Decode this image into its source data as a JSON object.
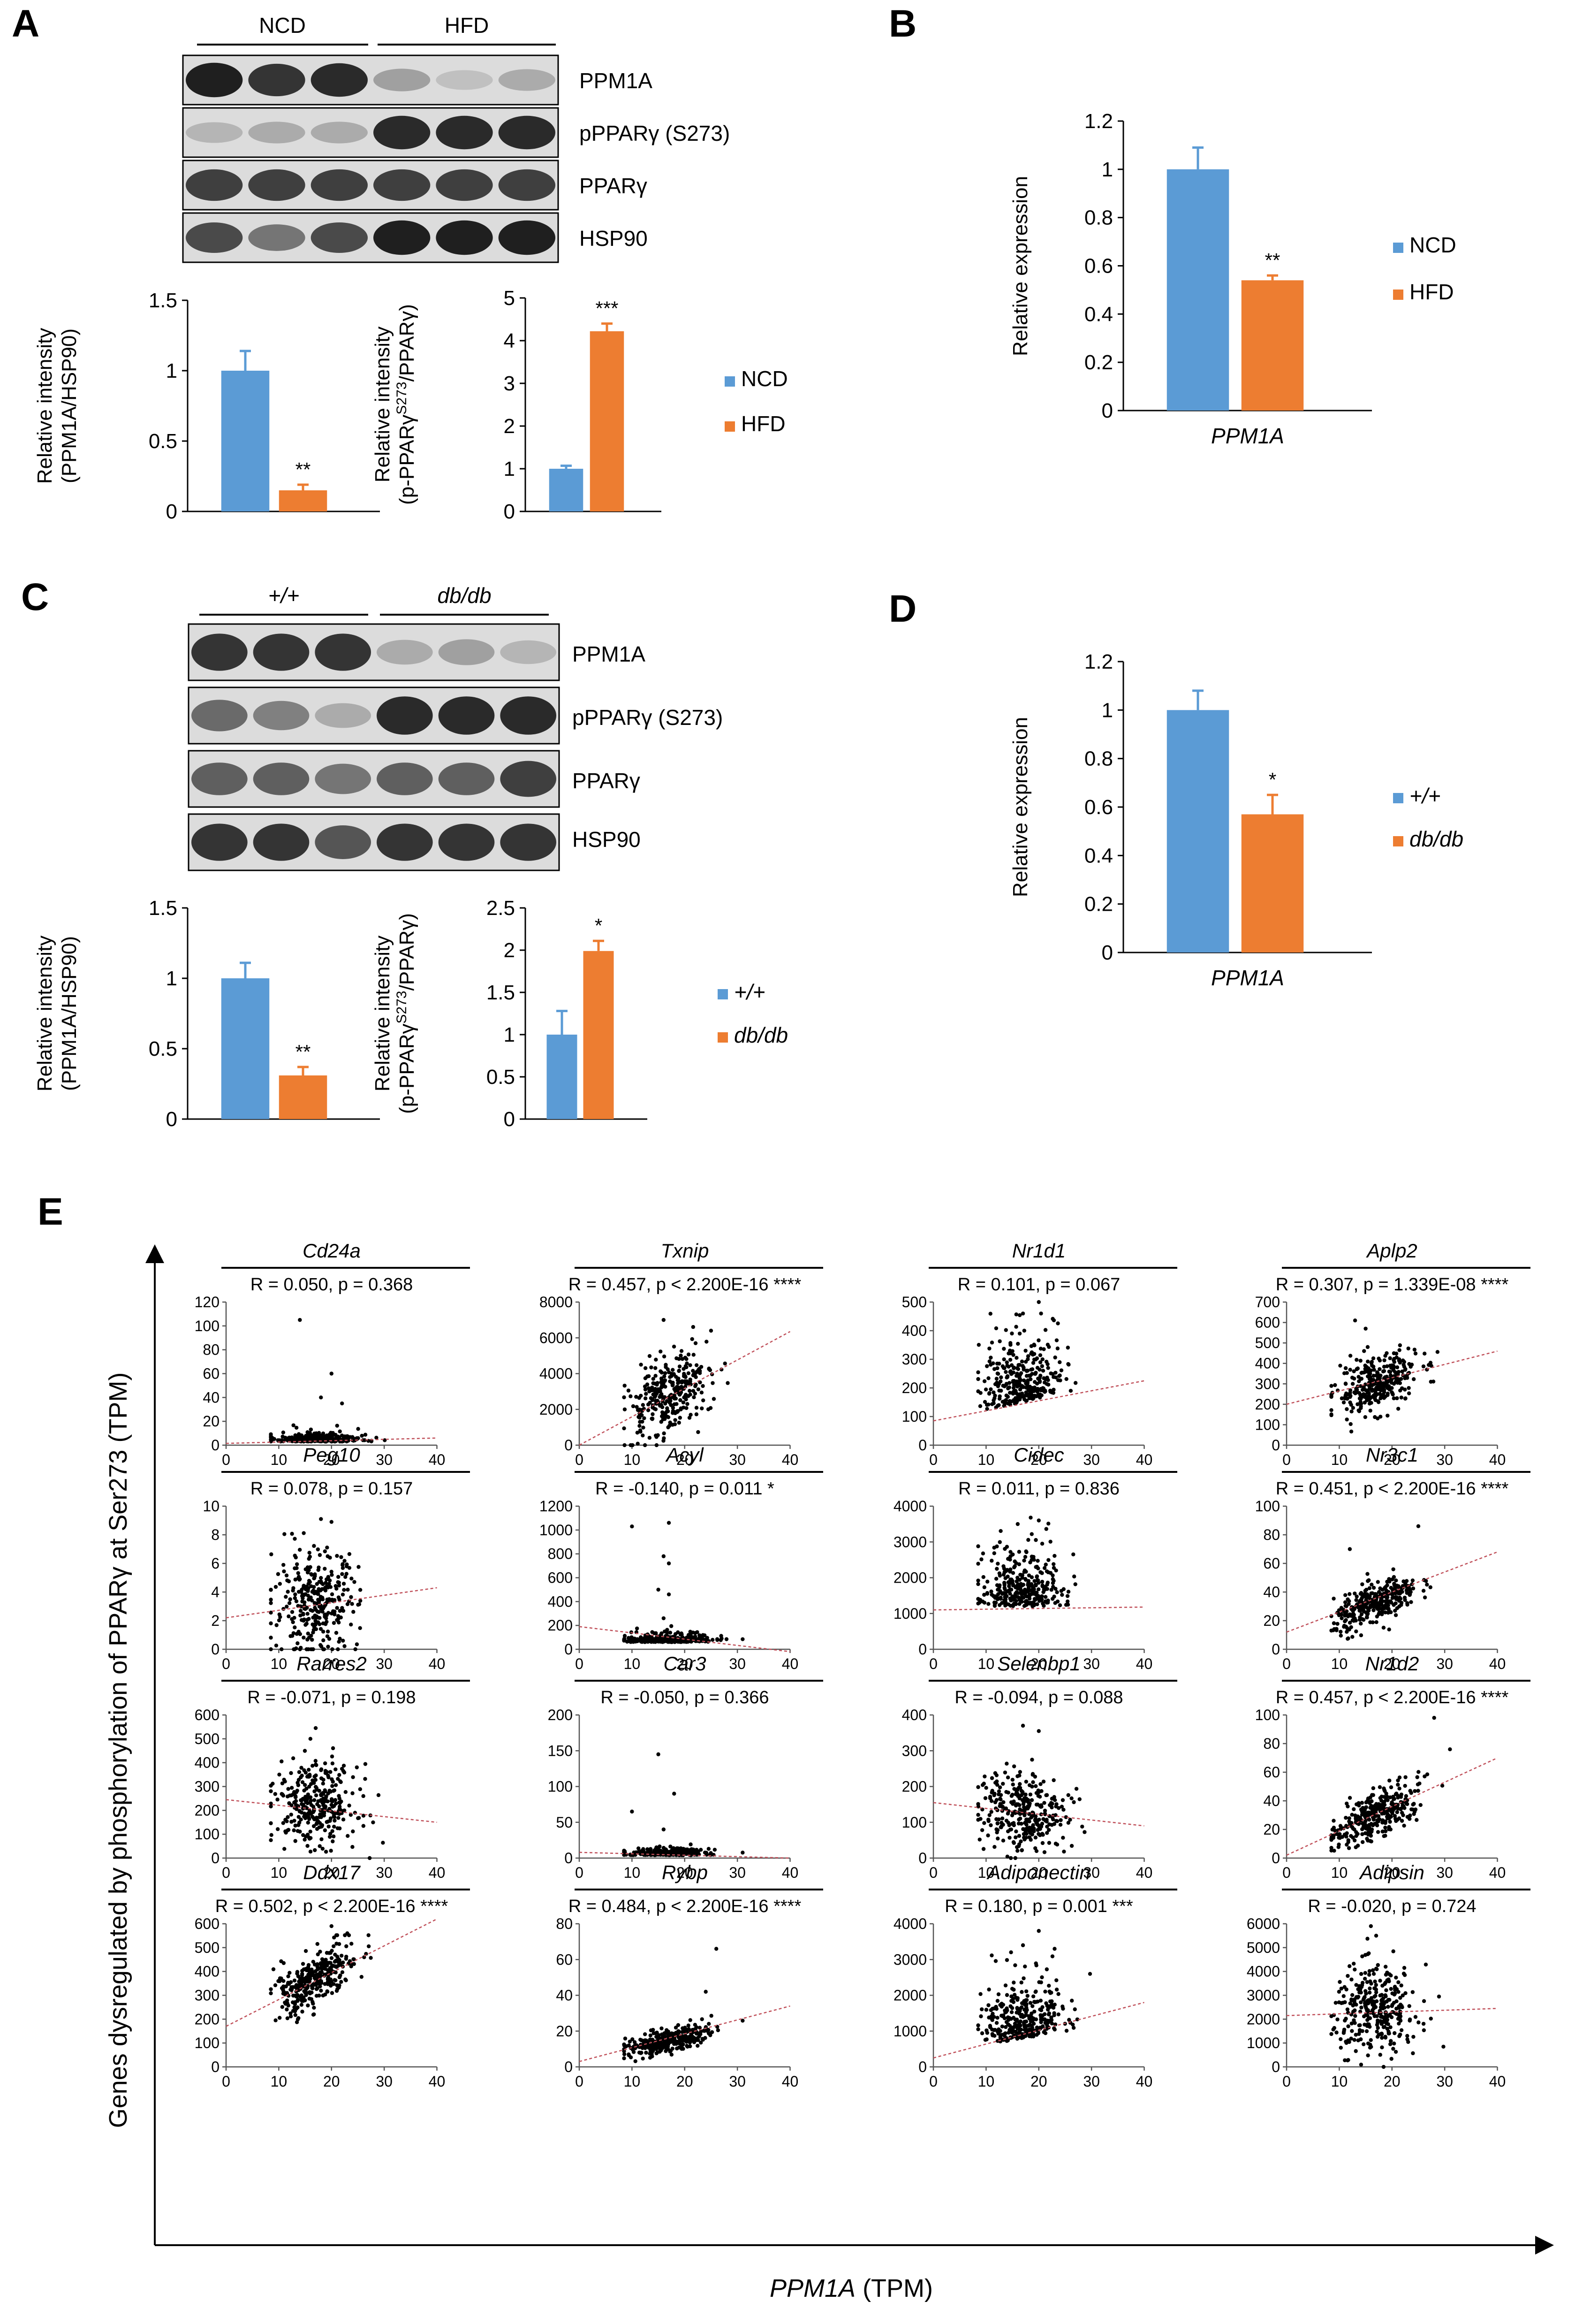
{
  "colors": {
    "ncd": "#5B9BD5",
    "hfd": "#ED7D31",
    "trend": "#C0505A",
    "band_dark": "#1a1a1a",
    "band_light": "#9a9a9a"
  },
  "panels": {
    "A": {
      "letter": "A",
      "blot": {
        "groups": [
          "NCD",
          "HFD"
        ],
        "rows": [
          "PPM1A",
          "pPPARγ (S273)",
          "PPARγ",
          "HSP90"
        ],
        "band_intensity": [
          [
            0.95,
            0.85,
            0.9,
            0.35,
            0.2,
            0.3
          ],
          [
            0.25,
            0.3,
            0.3,
            0.9,
            0.9,
            0.9
          ],
          [
            0.8,
            0.8,
            0.8,
            0.8,
            0.8,
            0.8
          ],
          [
            0.75,
            0.55,
            0.75,
            0.95,
            0.95,
            0.95
          ]
        ]
      },
      "legend": [
        "NCD",
        "HFD"
      ]
    },
    "B": {
      "letter": "B",
      "legend": [
        "NCD",
        "HFD"
      ]
    },
    "C": {
      "letter": "C",
      "blot": {
        "groups": [
          "+/+",
          "db/db"
        ],
        "rows": [
          "PPM1A",
          "pPPARγ (S273)",
          "PPARγ",
          "HSP90"
        ],
        "band_intensity": [
          [
            0.85,
            0.85,
            0.85,
            0.3,
            0.35,
            0.25
          ],
          [
            0.6,
            0.5,
            0.3,
            0.9,
            0.9,
            0.9
          ],
          [
            0.65,
            0.65,
            0.55,
            0.65,
            0.65,
            0.8
          ],
          [
            0.85,
            0.85,
            0.7,
            0.85,
            0.85,
            0.85
          ]
        ]
      },
      "legend": [
        "+/+",
        "db/db"
      ]
    },
    "D": {
      "letter": "D",
      "legend": [
        "+/+",
        "db/db"
      ]
    },
    "E": {
      "letter": "E",
      "xlabel_gene": "PPM1A",
      "xlabel_unit": " (TPM)",
      "ylabel": "Genes dysregulated by phosphorylation of PPARγ at Ser273 (TPM)"
    }
  },
  "chart_data": [
    {
      "id": "A-left",
      "type": "bar",
      "categories": [
        "NCD",
        "HFD"
      ],
      "values": [
        1.0,
        0.15
      ],
      "errors": [
        0.14,
        0.04
      ],
      "significance": [
        "",
        "**"
      ],
      "ylabel": [
        "Relative intensity",
        "(PPM1A/HSP90)"
      ],
      "ylim": [
        0,
        1.5
      ],
      "yticks": [
        "0",
        "0.5",
        "1",
        "1.5"
      ],
      "xlabel": ""
    },
    {
      "id": "A-right",
      "type": "bar",
      "categories": [
        "NCD",
        "HFD"
      ],
      "values": [
        1.0,
        4.22
      ],
      "errors": [
        0.07,
        0.18
      ],
      "significance": [
        "",
        "***"
      ],
      "ylabel": [
        "Relative intensity",
        "(p-PPARγ",
        "S273",
        "/PPARγ)"
      ],
      "ylim": [
        0,
        5
      ],
      "yticks": [
        "0",
        "1",
        "2",
        "3",
        "4",
        "5"
      ],
      "xlabel": ""
    },
    {
      "id": "B",
      "type": "bar",
      "categories": [
        "NCD",
        "HFD"
      ],
      "values": [
        1.0,
        0.54
      ],
      "errors": [
        0.09,
        0.02
      ],
      "significance": [
        "",
        "**"
      ],
      "ylabel": [
        "Relative expression"
      ],
      "ylim": [
        0,
        1.2
      ],
      "yticks": [
        "0",
        "0.2",
        "0.4",
        "0.6",
        "0.8",
        "1",
        "1.2"
      ],
      "xlabel": "PPM1A"
    },
    {
      "id": "C-left",
      "type": "bar",
      "categories": [
        "+/+",
        "db/db"
      ],
      "values": [
        1.0,
        0.31
      ],
      "errors": [
        0.11,
        0.06
      ],
      "significance": [
        "",
        "**"
      ],
      "ylabel": [
        "Relative intensity",
        "(PPM1A/HSP90)"
      ],
      "ylim": [
        0,
        1.5
      ],
      "yticks": [
        "0",
        "0.5",
        "1",
        "1.5"
      ],
      "xlabel": ""
    },
    {
      "id": "C-right",
      "type": "bar",
      "categories": [
        "+/+",
        "db/db"
      ],
      "values": [
        1.0,
        1.99
      ],
      "errors": [
        0.28,
        0.12
      ],
      "significance": [
        "",
        "*"
      ],
      "ylabel": [
        "Relative intensity",
        "(p-PPARγ",
        "S273",
        "/PPARγ)"
      ],
      "ylim": [
        0,
        2.5
      ],
      "yticks": [
        "0",
        "0.5",
        "1",
        "1.5",
        "2",
        "2.5"
      ],
      "xlabel": ""
    },
    {
      "id": "D",
      "type": "bar",
      "categories": [
        "+/+",
        "db/db"
      ],
      "values": [
        1.0,
        0.57
      ],
      "errors": [
        0.08,
        0.08
      ],
      "significance": [
        "",
        "*"
      ],
      "ylabel": [
        "Relative expression"
      ],
      "ylim": [
        0,
        1.2
      ],
      "yticks": [
        "0",
        "0.2",
        "0.4",
        "0.6",
        "0.8",
        "1",
        "1.2"
      ],
      "xlabel": "PPM1A"
    },
    {
      "id": "E",
      "type": "scatter",
      "xlabel": "PPM1A (TPM)",
      "ylabel": "Genes dysregulated by phosphorylation of PPARγ at Ser273 (TPM)",
      "xlim": [
        0,
        40
      ],
      "xticks": [
        "0",
        "10",
        "20",
        "30",
        "40"
      ],
      "n_points": 325,
      "x_distribution": {
        "mean": 17,
        "sd": 4,
        "min": 8.5,
        "max": 31
      },
      "subplots": [
        {
          "gene": "Cd24a",
          "stat": "R = 0.050, p = 0.368",
          "ylim": [
            0,
            120
          ],
          "yticks": [
            "0",
            "20",
            "40",
            "60",
            "80",
            "100",
            "120"
          ],
          "trend": [
            [
              0,
              1.5
            ],
            [
              40,
              6
            ]
          ],
          "cloud": {
            "base": 3,
            "slope": 0,
            "spread": 3,
            "skew": true
          },
          "outliers": [
            [
              14,
              105
            ],
            [
              20,
              60
            ],
            [
              18,
              40
            ],
            [
              22,
              35
            ]
          ]
        },
        {
          "gene": "Txnip",
          "stat": "R = 0.457, p < 2.200E-16 ****",
          "ylim": [
            0,
            8000
          ],
          "yticks": [
            "0",
            "2000",
            "4000",
            "6000",
            "8000"
          ],
          "trend": [
            [
              0,
              0
            ],
            [
              40,
              6350
            ]
          ],
          "cloud": {
            "base": 2800,
            "slope": 160,
            "spread": 1000,
            "skew": false
          },
          "outliers": [
            [
              16,
              7000
            ],
            [
              25,
              6400
            ]
          ]
        },
        {
          "gene": "Nr1d1",
          "stat": "R = 0.101, p = 0.067",
          "ylim": [
            0,
            500
          ],
          "yticks": [
            "0",
            "100",
            "200",
            "300",
            "400",
            "500"
          ],
          "trend": [
            [
              0,
              85
            ],
            [
              40,
              225
            ]
          ],
          "cloud": {
            "base": 150,
            "slope": 4,
            "spread": 95,
            "skew": true
          },
          "outliers": [
            [
              20,
              510
            ],
            [
              17,
              460
            ]
          ]
        },
        {
          "gene": "Aplp2",
          "stat": "R = 0.307, p = 1.339E-08 ****",
          "ylim": [
            0,
            700
          ],
          "yticks": [
            "0",
            "100",
            "200",
            "300",
            "400",
            "500",
            "600",
            "700"
          ],
          "trend": [
            [
              0,
              200
            ],
            [
              40,
              460
            ]
          ],
          "cloud": {
            "base": 300,
            "slope": 8,
            "spread": 65,
            "skew": false
          },
          "outliers": [
            [
              13,
              610
            ],
            [
              15,
              570
            ]
          ]
        },
        {
          "gene": "Peg10",
          "stat": "R = 0.078, p = 0.157",
          "ylim": [
            0,
            10
          ],
          "yticks": [
            "0",
            "2",
            "4",
            "6",
            "8",
            "10"
          ],
          "trend": [
            [
              0,
              2.2
            ],
            [
              40,
              4.3
            ]
          ],
          "cloud": {
            "base": 3.2,
            "slope": 0.05,
            "spread": 1.8,
            "skew": false
          },
          "outliers": [
            [
              18,
              9.1
            ],
            [
              20,
              8.9
            ]
          ]
        },
        {
          "gene": "Acyl",
          "stat": "R = -0.140, p = 0.011 *",
          "ylim": [
            0,
            1200
          ],
          "yticks": [
            "0",
            "200",
            "400",
            "600",
            "800",
            "1000",
            "1200"
          ],
          "trend": [
            [
              0,
              190
            ],
            [
              40,
              -20
            ]
          ],
          "cloud": {
            "base": 60,
            "slope": 0,
            "spread": 30,
            "skew": true
          },
          "outliers": [
            [
              17,
              1060
            ],
            [
              10,
              1030
            ],
            [
              16,
              780
            ],
            [
              17,
              720
            ],
            [
              15,
              500
            ],
            [
              17,
              460
            ],
            [
              16,
              260
            ]
          ]
        },
        {
          "gene": "Cidec",
          "stat": "R = 0.011, p = 0.836",
          "ylim": [
            0,
            4000
          ],
          "yticks": [
            "0",
            "1000",
            "2000",
            "3000",
            "4000"
          ],
          "trend": [
            [
              0,
              1100
            ],
            [
              40,
              1180
            ]
          ],
          "cloud": {
            "base": 1200,
            "slope": 0,
            "spread": 700,
            "skew": true
          },
          "outliers": [
            [
              20,
              3600
            ],
            [
              16,
              3500
            ]
          ]
        },
        {
          "gene": "Nr3c1",
          "stat": "R = 0.451, p < 2.200E-16 ****",
          "ylim": [
            0,
            100
          ],
          "yticks": [
            "0",
            "20",
            "40",
            "60",
            "80",
            "100"
          ],
          "trend": [
            [
              0,
              12
            ],
            [
              40,
              68
            ]
          ],
          "cloud": {
            "base": 32,
            "slope": 1.5,
            "spread": 7,
            "skew": false
          },
          "outliers": [
            [
              25,
              86
            ],
            [
              12,
              70
            ]
          ]
        },
        {
          "gene": "Rarres2",
          "stat": "R = -0.071, p = 0.198",
          "ylim": [
            0,
            600
          ],
          "yticks": [
            "0",
            "100",
            "200",
            "300",
            "400",
            "500",
            "600"
          ],
          "trend": [
            [
              0,
              245
            ],
            [
              40,
              150
            ]
          ],
          "cloud": {
            "base": 230,
            "slope": -1.5,
            "spread": 85,
            "skew": false
          },
          "outliers": [
            [
              17,
              545
            ],
            [
              16,
              500
            ]
          ]
        },
        {
          "gene": "Car3",
          "stat": "R = -0.050, p = 0.366",
          "ylim": [
            0,
            200
          ],
          "yticks": [
            "0",
            "50",
            "100",
            "150",
            "200"
          ],
          "trend": [
            [
              0,
              8
            ],
            [
              40,
              0
            ]
          ],
          "cloud": {
            "base": 4,
            "slope": 0,
            "spread": 4,
            "skew": true
          },
          "outliers": [
            [
              15,
              145
            ],
            [
              18,
              90
            ],
            [
              10,
              65
            ],
            [
              16,
              40
            ]
          ]
        },
        {
          "gene": "Selenbp1",
          "stat": "R = -0.094, p = 0.088",
          "ylim": [
            0,
            400
          ],
          "yticks": [
            "0",
            "100",
            "200",
            "300",
            "400"
          ],
          "trend": [
            [
              0,
              155
            ],
            [
              40,
              90
            ]
          ],
          "cloud": {
            "base": 130,
            "slope": -1,
            "spread": 55,
            "skew": false
          },
          "outliers": [
            [
              17,
              370
            ],
            [
              20,
              355
            ]
          ]
        },
        {
          "gene": "Nr1d2",
          "stat": "R = 0.457, p < 2.200E-16 ****",
          "ylim": [
            0,
            100
          ],
          "yticks": [
            "0",
            "20",
            "40",
            "60",
            "80",
            "100"
          ],
          "trend": [
            [
              0,
              2
            ],
            [
              40,
              70
            ]
          ],
          "cloud": {
            "base": 30,
            "slope": 1.6,
            "spread": 8,
            "skew": false
          },
          "outliers": [
            [
              28,
              98
            ],
            [
              31,
              76
            ]
          ]
        },
        {
          "gene": "Ddx17",
          "stat": "R = 0.502, p < 2.200E-16 ****",
          "ylim": [
            0,
            600
          ],
          "yticks": [
            "0",
            "100",
            "200",
            "300",
            "400",
            "500",
            "600"
          ],
          "trend": [
            [
              0,
              170
            ],
            [
              40,
              620
            ]
          ],
          "cloud": {
            "base": 370,
            "slope": 12,
            "spread": 55,
            "skew": false
          },
          "outliers": [
            [
              20,
              590
            ],
            [
              23,
              560
            ]
          ]
        },
        {
          "gene": "Rybp",
          "stat": "R = 0.484, p < 2.200E-16 ****",
          "ylim": [
            0,
            80
          ],
          "yticks": [
            "0",
            "20",
            "40",
            "60",
            "80"
          ],
          "trend": [
            [
              0,
              3
            ],
            [
              40,
              34
            ]
          ],
          "cloud": {
            "base": 15,
            "slope": 0.6,
            "spread": 3,
            "skew": false
          },
          "outliers": [
            [
              26,
              66
            ],
            [
              24,
              42
            ]
          ]
        },
        {
          "gene": "Adiponectin",
          "stat": "R = 0.180, p = 0.001 ***",
          "ylim": [
            0,
            4000
          ],
          "yticks": [
            "0",
            "1000",
            "2000",
            "3000",
            "4000"
          ],
          "trend": [
            [
              0,
              250
            ],
            [
              40,
              1800
            ]
          ],
          "cloud": {
            "base": 800,
            "slope": 25,
            "spread": 650,
            "skew": true
          },
          "outliers": [
            [
              20,
              3800
            ],
            [
              17,
              3400
            ],
            [
              23,
              3300
            ]
          ]
        },
        {
          "gene": "Adipsin",
          "stat": "R = -0.020, p = 0.724",
          "ylim": [
            0,
            6000
          ],
          "yticks": [
            "0",
            "1000",
            "2000",
            "3000",
            "4000",
            "5000",
            "6000"
          ],
          "trend": [
            [
              0,
              2150
            ],
            [
              40,
              2450
            ]
          ],
          "cloud": {
            "base": 2400,
            "slope": 0,
            "spread": 900,
            "skew": false
          },
          "outliers": [
            [
              16,
              5900
            ],
            [
              17,
              5500
            ]
          ]
        }
      ]
    }
  ]
}
